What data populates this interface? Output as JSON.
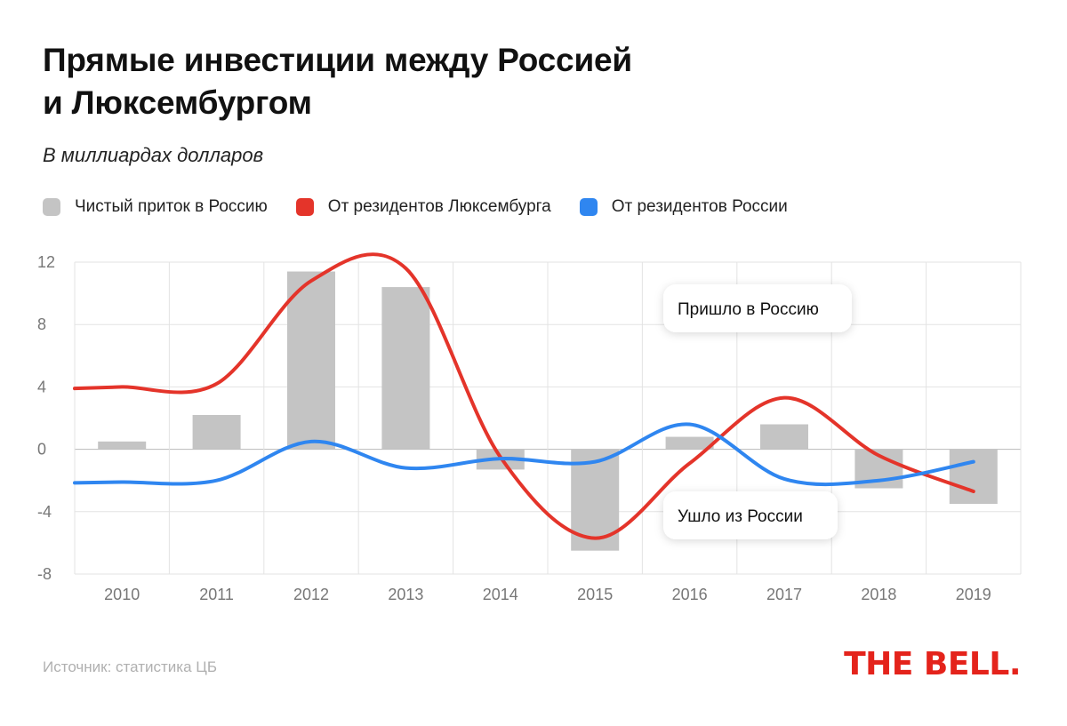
{
  "title_lines": [
    "Прямые инвестиции между Россией",
    "и Люксембургом"
  ],
  "subtitle": "В миллиардах долларов",
  "legend": [
    {
      "label": "Чистый приток в Россию",
      "color": "#c4c4c4"
    },
    {
      "label": "От резидентов Люксембурга",
      "color": "#e4342a"
    },
    {
      "label": "От резидентов России",
      "color": "#2f86f0"
    }
  ],
  "chart_data": {
    "type": "bar",
    "categories": [
      "2010",
      "2011",
      "2012",
      "2013",
      "2014",
      "2015",
      "2016",
      "2017",
      "2018",
      "2019"
    ],
    "series": [
      {
        "name": "Чистый приток в Россию",
        "kind": "bar",
        "color": "#c4c4c4",
        "values": [
          0.5,
          2.2,
          11.4,
          10.4,
          -1.3,
          -6.5,
          0.8,
          1.6,
          -2.5,
          -3.5
        ]
      },
      {
        "name": "От резидентов Люксембурга",
        "kind": "line",
        "color": "#e4342a",
        "values": [
          4.0,
          4.2,
          10.8,
          11.6,
          -0.5,
          -5.7,
          -0.9,
          3.3,
          -0.4,
          -2.7
        ]
      },
      {
        "name": "От резидентов России",
        "kind": "line",
        "color": "#2f86f0",
        "values": [
          -2.1,
          -2.0,
          0.5,
          -1.2,
          -0.6,
          -0.8,
          1.6,
          -1.9,
          -2.0,
          -0.8
        ]
      }
    ],
    "yticks": [
      "12",
      "8",
      "4",
      "0",
      "-4",
      "-8"
    ],
    "ylim": [
      -8,
      12
    ],
    "annotations": [
      "Пришло в Россию",
      "Ушло из России"
    ],
    "xlabel": "",
    "ylabel": ""
  },
  "source": "Источник: статистика ЦБ",
  "brand": "THE BELL."
}
